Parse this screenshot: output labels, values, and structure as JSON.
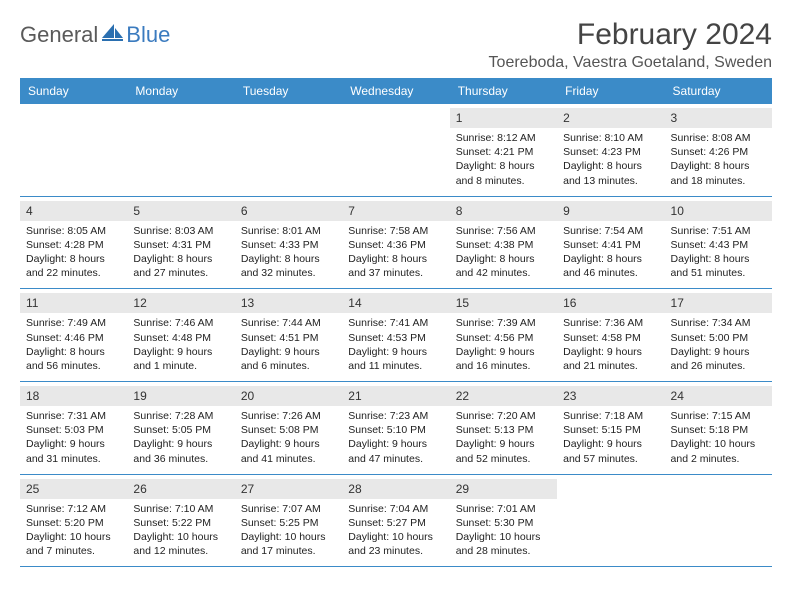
{
  "brand": {
    "part1": "General",
    "part2": "Blue"
  },
  "title": "February 2024",
  "location": "Toereboda, Vaestra Goetaland, Sweden",
  "colors": {
    "header_bg": "#3b8bc8",
    "header_fg": "#ffffff",
    "date_bg": "#e8e8e8",
    "rule": "#3b8bc8",
    "brand_gray": "#5a5a5a",
    "brand_blue": "#3b7bbf"
  },
  "day_names": [
    "Sunday",
    "Monday",
    "Tuesday",
    "Wednesday",
    "Thursday",
    "Friday",
    "Saturday"
  ],
  "weeks": [
    [
      {
        "empty": true
      },
      {
        "empty": true
      },
      {
        "empty": true
      },
      {
        "empty": true
      },
      {
        "d": "1",
        "sr": "Sunrise: 8:12 AM",
        "ss": "Sunset: 4:21 PM",
        "dl1": "Daylight: 8 hours",
        "dl2": "and 8 minutes."
      },
      {
        "d": "2",
        "sr": "Sunrise: 8:10 AM",
        "ss": "Sunset: 4:23 PM",
        "dl1": "Daylight: 8 hours",
        "dl2": "and 13 minutes."
      },
      {
        "d": "3",
        "sr": "Sunrise: 8:08 AM",
        "ss": "Sunset: 4:26 PM",
        "dl1": "Daylight: 8 hours",
        "dl2": "and 18 minutes."
      }
    ],
    [
      {
        "d": "4",
        "sr": "Sunrise: 8:05 AM",
        "ss": "Sunset: 4:28 PM",
        "dl1": "Daylight: 8 hours",
        "dl2": "and 22 minutes."
      },
      {
        "d": "5",
        "sr": "Sunrise: 8:03 AM",
        "ss": "Sunset: 4:31 PM",
        "dl1": "Daylight: 8 hours",
        "dl2": "and 27 minutes."
      },
      {
        "d": "6",
        "sr": "Sunrise: 8:01 AM",
        "ss": "Sunset: 4:33 PM",
        "dl1": "Daylight: 8 hours",
        "dl2": "and 32 minutes."
      },
      {
        "d": "7",
        "sr": "Sunrise: 7:58 AM",
        "ss": "Sunset: 4:36 PM",
        "dl1": "Daylight: 8 hours",
        "dl2": "and 37 minutes."
      },
      {
        "d": "8",
        "sr": "Sunrise: 7:56 AM",
        "ss": "Sunset: 4:38 PM",
        "dl1": "Daylight: 8 hours",
        "dl2": "and 42 minutes."
      },
      {
        "d": "9",
        "sr": "Sunrise: 7:54 AM",
        "ss": "Sunset: 4:41 PM",
        "dl1": "Daylight: 8 hours",
        "dl2": "and 46 minutes."
      },
      {
        "d": "10",
        "sr": "Sunrise: 7:51 AM",
        "ss": "Sunset: 4:43 PM",
        "dl1": "Daylight: 8 hours",
        "dl2": "and 51 minutes."
      }
    ],
    [
      {
        "d": "11",
        "sr": "Sunrise: 7:49 AM",
        "ss": "Sunset: 4:46 PM",
        "dl1": "Daylight: 8 hours",
        "dl2": "and 56 minutes."
      },
      {
        "d": "12",
        "sr": "Sunrise: 7:46 AM",
        "ss": "Sunset: 4:48 PM",
        "dl1": "Daylight: 9 hours",
        "dl2": "and 1 minute."
      },
      {
        "d": "13",
        "sr": "Sunrise: 7:44 AM",
        "ss": "Sunset: 4:51 PM",
        "dl1": "Daylight: 9 hours",
        "dl2": "and 6 minutes."
      },
      {
        "d": "14",
        "sr": "Sunrise: 7:41 AM",
        "ss": "Sunset: 4:53 PM",
        "dl1": "Daylight: 9 hours",
        "dl2": "and 11 minutes."
      },
      {
        "d": "15",
        "sr": "Sunrise: 7:39 AM",
        "ss": "Sunset: 4:56 PM",
        "dl1": "Daylight: 9 hours",
        "dl2": "and 16 minutes."
      },
      {
        "d": "16",
        "sr": "Sunrise: 7:36 AM",
        "ss": "Sunset: 4:58 PM",
        "dl1": "Daylight: 9 hours",
        "dl2": "and 21 minutes."
      },
      {
        "d": "17",
        "sr": "Sunrise: 7:34 AM",
        "ss": "Sunset: 5:00 PM",
        "dl1": "Daylight: 9 hours",
        "dl2": "and 26 minutes."
      }
    ],
    [
      {
        "d": "18",
        "sr": "Sunrise: 7:31 AM",
        "ss": "Sunset: 5:03 PM",
        "dl1": "Daylight: 9 hours",
        "dl2": "and 31 minutes."
      },
      {
        "d": "19",
        "sr": "Sunrise: 7:28 AM",
        "ss": "Sunset: 5:05 PM",
        "dl1": "Daylight: 9 hours",
        "dl2": "and 36 minutes."
      },
      {
        "d": "20",
        "sr": "Sunrise: 7:26 AM",
        "ss": "Sunset: 5:08 PM",
        "dl1": "Daylight: 9 hours",
        "dl2": "and 41 minutes."
      },
      {
        "d": "21",
        "sr": "Sunrise: 7:23 AM",
        "ss": "Sunset: 5:10 PM",
        "dl1": "Daylight: 9 hours",
        "dl2": "and 47 minutes."
      },
      {
        "d": "22",
        "sr": "Sunrise: 7:20 AM",
        "ss": "Sunset: 5:13 PM",
        "dl1": "Daylight: 9 hours",
        "dl2": "and 52 minutes."
      },
      {
        "d": "23",
        "sr": "Sunrise: 7:18 AM",
        "ss": "Sunset: 5:15 PM",
        "dl1": "Daylight: 9 hours",
        "dl2": "and 57 minutes."
      },
      {
        "d": "24",
        "sr": "Sunrise: 7:15 AM",
        "ss": "Sunset: 5:18 PM",
        "dl1": "Daylight: 10 hours",
        "dl2": "and 2 minutes."
      }
    ],
    [
      {
        "d": "25",
        "sr": "Sunrise: 7:12 AM",
        "ss": "Sunset: 5:20 PM",
        "dl1": "Daylight: 10 hours",
        "dl2": "and 7 minutes."
      },
      {
        "d": "26",
        "sr": "Sunrise: 7:10 AM",
        "ss": "Sunset: 5:22 PM",
        "dl1": "Daylight: 10 hours",
        "dl2": "and 12 minutes."
      },
      {
        "d": "27",
        "sr": "Sunrise: 7:07 AM",
        "ss": "Sunset: 5:25 PM",
        "dl1": "Daylight: 10 hours",
        "dl2": "and 17 minutes."
      },
      {
        "d": "28",
        "sr": "Sunrise: 7:04 AM",
        "ss": "Sunset: 5:27 PM",
        "dl1": "Daylight: 10 hours",
        "dl2": "and 23 minutes."
      },
      {
        "d": "29",
        "sr": "Sunrise: 7:01 AM",
        "ss": "Sunset: 5:30 PM",
        "dl1": "Daylight: 10 hours",
        "dl2": "and 28 minutes."
      },
      {
        "empty": true
      },
      {
        "empty": true
      }
    ]
  ]
}
